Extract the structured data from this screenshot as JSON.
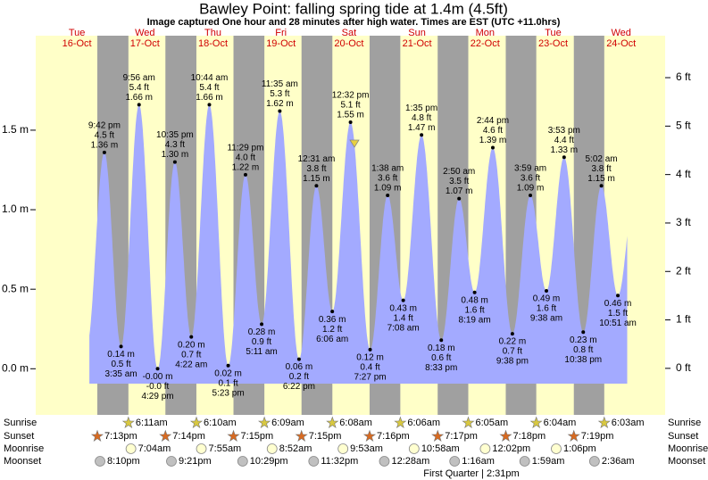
{
  "header": {
    "title": "Bawley Point: falling  spring tide at 1.4m (4.5ft)",
    "subtitle": "Image captured One hour and 28 minutes after high water. Times are EST (UTC +11.0hrs)"
  },
  "chart_data": {
    "type": "tide",
    "color": "#a3aaff",
    "days": [
      {
        "weekday": "Tue",
        "date": "16-Oct"
      },
      {
        "weekday": "Wed",
        "date": "17-Oct"
      },
      {
        "weekday": "Thu",
        "date": "18-Oct"
      },
      {
        "weekday": "Fri",
        "date": "19-Oct"
      },
      {
        "weekday": "Sat",
        "date": "20-Oct"
      },
      {
        "weekday": "Sun",
        "date": "21-Oct"
      },
      {
        "weekday": "Mon",
        "date": "22-Oct"
      },
      {
        "weekday": "Tue",
        "date": "23-Oct"
      },
      {
        "weekday": "Wed",
        "date": "24-Oct"
      }
    ],
    "ylim": [
      -0.29,
      2.01
    ],
    "yticks": [
      {
        "value": 0,
        "label": "0.0 m"
      },
      {
        "value": 0.5,
        "label": "0.5 m"
      },
      {
        "value": 1,
        "label": "1.0 m"
      },
      {
        "value": 1.5,
        "label": "1.5 m"
      }
    ],
    "y2lim": [
      -0.96,
      6.59
    ],
    "y2ticks": [
      {
        "value": 0,
        "label": "0 ft"
      },
      {
        "value": 1,
        "label": "1 ft"
      },
      {
        "value": 2,
        "label": "2 ft"
      },
      {
        "value": 3,
        "label": "3 ft"
      },
      {
        "value": 4,
        "label": "4 ft"
      },
      {
        "value": 5,
        "label": "5 ft"
      },
      {
        "value": 6,
        "label": "6 ft"
      }
    ],
    "tides": [
      {
        "time": "9:42 pm",
        "ft_label": "4.5 ft",
        "m": 1.36,
        "m_label": "1.36 m"
      },
      {
        "time": "3:35 am",
        "ft_label": "0.5 ft",
        "m": 0.14,
        "m_label": "0.14 m"
      },
      {
        "time": "9:56 am",
        "ft_label": "5.4 ft",
        "m": 1.66,
        "m_label": "1.66 m"
      },
      {
        "time": "4:29 pm",
        "ft_label": "-0.0 ft",
        "m": 0,
        "m_label": "-0.00 m"
      },
      {
        "time": "10:35 pm",
        "ft_label": "4.3 ft",
        "m": 1.3,
        "m_label": "1.30 m"
      },
      {
        "time": "4:22 am",
        "ft_label": "0.7 ft",
        "m": 0.2,
        "m_label": "0.20 m"
      },
      {
        "time": "10:44 am",
        "ft_label": "5.4 ft",
        "m": 1.66,
        "m_label": "1.66 m"
      },
      {
        "time": "5:23 pm",
        "ft_label": "0.1 ft",
        "m": 0.02,
        "m_label": "0.02 m"
      },
      {
        "time": "11:29 pm",
        "ft_label": "4.0 ft",
        "m": 1.22,
        "m_label": "1.22 m"
      },
      {
        "time": "5:11 am",
        "ft_label": "0.9 ft",
        "m": 0.28,
        "m_label": "0.28 m"
      },
      {
        "time": "11:35 am",
        "ft_label": "5.3 ft",
        "m": 1.62,
        "m_label": "1.62 m"
      },
      {
        "time": "6:22 pm",
        "ft_label": "0.2 ft",
        "m": 0.06,
        "m_label": "0.06 m"
      },
      {
        "time": "12:31 am",
        "ft_label": "3.8 ft",
        "m": 1.15,
        "m_label": "1.15 m"
      },
      {
        "time": "6:06 am",
        "ft_label": "1.2 ft",
        "m": 0.36,
        "m_label": "0.36 m"
      },
      {
        "time": "12:32 pm",
        "ft_label": "5.1 ft",
        "m": 1.55,
        "m_label": "1.55 m"
      },
      {
        "time": "7:27 pm",
        "ft_label": "0.4 ft",
        "m": 0.12,
        "m_label": "0.12 m"
      },
      {
        "time": "1:38 am",
        "ft_label": "3.6 ft",
        "m": 1.09,
        "m_label": "1.09 m"
      },
      {
        "time": "7:08 am",
        "ft_label": "1.4 ft",
        "m": 0.43,
        "m_label": "0.43 m"
      },
      {
        "time": "1:35 pm",
        "ft_label": "4.8 ft",
        "m": 1.47,
        "m_label": "1.47 m"
      },
      {
        "time": "8:33 pm",
        "ft_label": "0.6 ft",
        "m": 0.18,
        "m_label": "0.18 m"
      },
      {
        "time": "2:50 am",
        "ft_label": "3.5 ft",
        "m": 1.07,
        "m_label": "1.07 m"
      },
      {
        "time": "8:19 am",
        "ft_label": "1.6 ft",
        "m": 0.48,
        "m_label": "0.48 m"
      },
      {
        "time": "2:44 pm",
        "ft_label": "4.6 ft",
        "m": 1.39,
        "m_label": "1.39 m"
      },
      {
        "time": "9:38 pm",
        "ft_label": "0.7 ft",
        "m": 0.22,
        "m_label": "0.22 m"
      },
      {
        "time": "3:59 am",
        "ft_label": "3.6 ft",
        "m": 1.09,
        "m_label": "1.09 m"
      },
      {
        "time": "9:38 am",
        "ft_label": "1.6 ft",
        "m": 0.49,
        "m_label": "0.49 m"
      },
      {
        "time": "3:53 pm",
        "ft_label": "4.4 ft",
        "m": 1.33,
        "m_label": "1.33 m"
      },
      {
        "time": "10:38 pm",
        "ft_label": "0.8 ft",
        "m": 0.23,
        "m_label": "0.23 m"
      },
      {
        "time": "5:02 am",
        "ft_label": "3.8 ft",
        "m": 1.15,
        "m_label": "1.15 m"
      },
      {
        "time": "10:51 am",
        "ft_label": "1.5 ft",
        "m": 0.46,
        "m_label": "0.46 m"
      }
    ],
    "astro": {
      "rows": [
        {
          "name": "Sunrise",
          "times": [
            null,
            "6:11am",
            "6:10am",
            "6:09am",
            "6:08am",
            "6:06am",
            "6:05am",
            "6:04am",
            "6:03am"
          ]
        },
        {
          "name": "Sunset",
          "times": [
            "7:13pm",
            "7:14pm",
            "7:15pm",
            "7:15pm",
            "7:16pm",
            "7:17pm",
            "7:18pm",
            "7:19pm",
            null
          ]
        },
        {
          "name": "Moonrise",
          "times": [
            null,
            "7:04am",
            "7:55am",
            "8:52am",
            "9:53am",
            "10:58am",
            "12:02pm",
            "1:06pm",
            null
          ]
        },
        {
          "name": "Moonset",
          "times": [
            "8:10pm",
            "9:21pm",
            "10:29pm",
            "11:32pm",
            null,
            "12:28am",
            "1:16am",
            "1:59am",
            "2:36am"
          ]
        }
      ],
      "phase": "First Quarter | 2:31pm"
    }
  }
}
